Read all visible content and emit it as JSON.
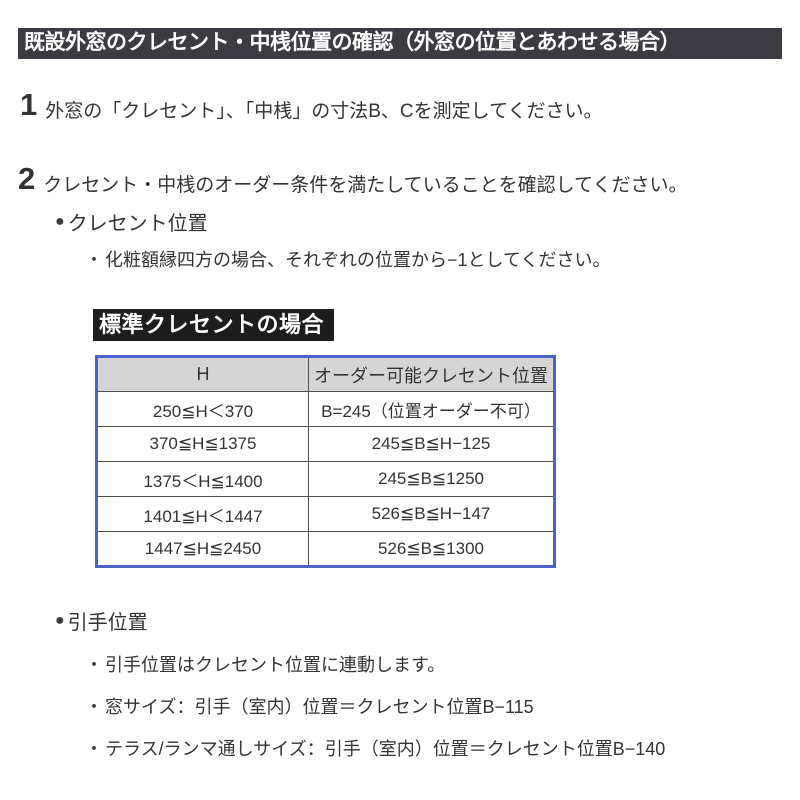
{
  "title": "既設外窓のクレセント・中桟位置の確認（外窓の位置とあわせる場合）",
  "steps": [
    {
      "number": "1",
      "text": "外窓の「クレセント」、「中桟」の寸法B、Cを測定してください。"
    },
    {
      "number": "2",
      "text": "クレセント・中桟のオーダー条件を満たしていることを確認してください。"
    }
  ],
  "bullet_glyph": "●",
  "sub_bullet_glyph": "・",
  "crescent_section": {
    "heading": "クレセント位置",
    "note": "化粧額縁四方の場合、それぞれの位置から−1としてください。",
    "table_label": "標準クレセントの場合",
    "table": {
      "headers": [
        "H",
        "オーダー可能クレセント位置"
      ],
      "rows": [
        [
          "250≦H＜370",
          "B=245（位置オーダー不可）"
        ],
        [
          "370≦H≦1375",
          "245≦B≦H−125"
        ],
        [
          "1375＜H≦1400",
          "245≦B≦1250"
        ],
        [
          "1401≦H＜1447",
          "526≦B≦H−147"
        ],
        [
          "1447≦H≦2450",
          "526≦B≦1300"
        ]
      ]
    }
  },
  "handle_section": {
    "heading": "引手位置",
    "notes": [
      "引手位置はクレセント位置に連動します。",
      "窓サイズ：引手（室内）位置＝クレセント位置B−115",
      "テラス/ランマ通しサイズ：引手（室内）位置＝クレセント位置B−140"
    ]
  },
  "colors": {
    "title_bar_bg": "#3b3b41",
    "table_label_bg": "#1d1d1d",
    "table_border": "#4a63c8",
    "table_header_bg": "#d5d5d6",
    "text": "#333336"
  }
}
